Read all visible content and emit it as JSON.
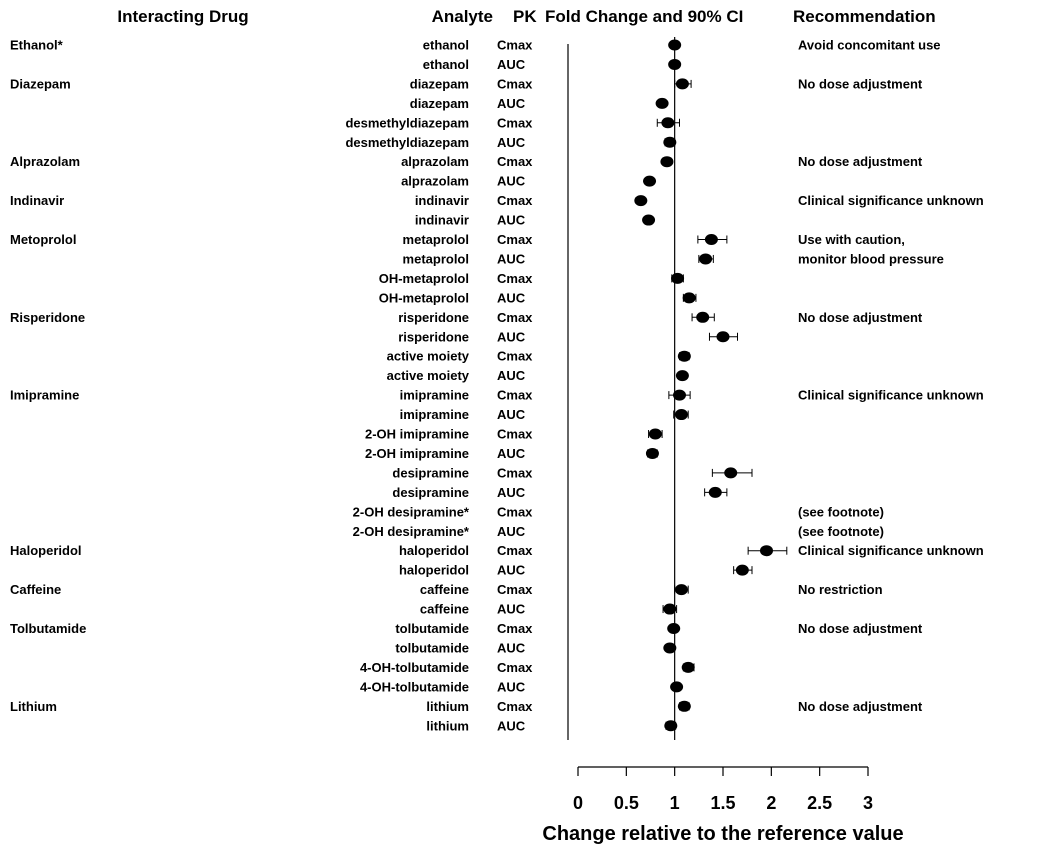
{
  "chart_data": {
    "type": "scatter",
    "subtype": "forest_plot",
    "headers": {
      "drug": "Interacting Drug",
      "analyte": "Analyte",
      "pk": "PK",
      "fold": "Fold Change and 90% CI",
      "recommendation": "Recommendation"
    },
    "xlabel": "Change relative to the reference value",
    "xlim": [
      0,
      3
    ],
    "xticks": [
      "0",
      "0.5",
      "1",
      "1.5",
      "2",
      "2.5",
      "3"
    ],
    "reference_line": 1,
    "rows": [
      {
        "drug": "Ethanol*",
        "analyte": "ethanol",
        "pk": "Cmax",
        "value": 1.0,
        "low": 1.0,
        "high": 1.0,
        "rec": "Avoid concomitant use"
      },
      {
        "drug": "",
        "analyte": "ethanol",
        "pk": "AUC",
        "value": 1.0,
        "low": 1.0,
        "high": 1.0,
        "rec": ""
      },
      {
        "drug": "Diazepam",
        "analyte": "diazepam",
        "pk": "Cmax",
        "value": 1.08,
        "low": 1.0,
        "high": 1.17,
        "rec": "No dose adjustment"
      },
      {
        "drug": "",
        "analyte": "diazepam",
        "pk": "AUC",
        "value": 0.87,
        "low": 0.85,
        "high": 0.89,
        "rec": ""
      },
      {
        "drug": "",
        "analyte": "desmethyldiazepam",
        "pk": "Cmax",
        "value": 0.93,
        "low": 0.82,
        "high": 1.05,
        "rec": ""
      },
      {
        "drug": "",
        "analyte": "desmethyldiazepam",
        "pk": "AUC",
        "value": 0.95,
        "low": 0.9,
        "high": 1.0,
        "rec": ""
      },
      {
        "drug": "Alprazolam",
        "analyte": "alprazolam",
        "pk": "Cmax",
        "value": 0.92,
        "low": 0.88,
        "high": 0.96,
        "rec": "No dose adjustment"
      },
      {
        "drug": "",
        "analyte": "alprazolam",
        "pk": "AUC",
        "value": 0.74,
        "low": 0.72,
        "high": 0.76,
        "rec": ""
      },
      {
        "drug": "Indinavir",
        "analyte": "indinavir",
        "pk": "Cmax",
        "value": 0.65,
        "low": 0.63,
        "high": 0.67,
        "rec": "Clinical significance unknown"
      },
      {
        "drug": "",
        "analyte": "indinavir",
        "pk": "AUC",
        "value": 0.73,
        "low": 0.71,
        "high": 0.75,
        "rec": ""
      },
      {
        "drug": "Metoprolol",
        "analyte": "metaprolol",
        "pk": "Cmax",
        "value": 1.38,
        "low": 1.24,
        "high": 1.54,
        "rec": "Use with caution,"
      },
      {
        "drug": "",
        "analyte": "metaprolol",
        "pk": "AUC",
        "value": 1.32,
        "low": 1.25,
        "high": 1.4,
        "rec": "monitor blood pressure"
      },
      {
        "drug": "",
        "analyte": "OH-metaprolol",
        "pk": "Cmax",
        "value": 1.03,
        "low": 0.97,
        "high": 1.09,
        "rec": ""
      },
      {
        "drug": "",
        "analyte": "OH-metaprolol",
        "pk": "AUC",
        "value": 1.15,
        "low": 1.09,
        "high": 1.22,
        "rec": ""
      },
      {
        "drug": "Risperidone",
        "analyte": "risperidone",
        "pk": "Cmax",
        "value": 1.29,
        "low": 1.18,
        "high": 1.41,
        "rec": "No dose adjustment"
      },
      {
        "drug": "",
        "analyte": "risperidone",
        "pk": "AUC",
        "value": 1.5,
        "low": 1.36,
        "high": 1.65,
        "rec": ""
      },
      {
        "drug": "",
        "analyte": "active moiety",
        "pk": "Cmax",
        "value": 1.1,
        "low": 1.05,
        "high": 1.15,
        "rec": ""
      },
      {
        "drug": "",
        "analyte": "active moiety",
        "pk": "AUC",
        "value": 1.08,
        "low": 1.04,
        "high": 1.12,
        "rec": ""
      },
      {
        "drug": "Imipramine",
        "analyte": "imipramine",
        "pk": "Cmax",
        "value": 1.05,
        "low": 0.94,
        "high": 1.16,
        "rec": "Clinical significance unknown"
      },
      {
        "drug": "",
        "analyte": "imipramine",
        "pk": "AUC",
        "value": 1.07,
        "low": 0.99,
        "high": 1.14,
        "rec": ""
      },
      {
        "drug": "",
        "analyte": "2-OH imipramine",
        "pk": "Cmax",
        "value": 0.8,
        "low": 0.73,
        "high": 0.87,
        "rec": ""
      },
      {
        "drug": "",
        "analyte": "2-OH imipramine",
        "pk": "AUC",
        "value": 0.77,
        "low": 0.72,
        "high": 0.82,
        "rec": ""
      },
      {
        "drug": "",
        "analyte": "desipramine",
        "pk": "Cmax",
        "value": 1.58,
        "low": 1.39,
        "high": 1.8,
        "rec": ""
      },
      {
        "drug": "",
        "analyte": "desipramine",
        "pk": "AUC",
        "value": 1.42,
        "low": 1.31,
        "high": 1.54,
        "rec": ""
      },
      {
        "drug": "",
        "analyte": "2-OH desipramine*",
        "pk": "Cmax",
        "value": null,
        "low": null,
        "high": null,
        "rec": "(see footnote)"
      },
      {
        "drug": "",
        "analyte": "2-OH desipramine*",
        "pk": "AUC",
        "value": null,
        "low": null,
        "high": null,
        "rec": "(see footnote)"
      },
      {
        "drug": "Haloperidol",
        "analyte": "haloperidol",
        "pk": "Cmax",
        "value": 1.95,
        "low": 1.76,
        "high": 2.16,
        "rec": "Clinical significance unknown"
      },
      {
        "drug": "",
        "analyte": "haloperidol",
        "pk": "AUC",
        "value": 1.7,
        "low": 1.61,
        "high": 1.8,
        "rec": ""
      },
      {
        "drug": "Caffeine",
        "analyte": "caffeine",
        "pk": "Cmax",
        "value": 1.07,
        "low": 1.0,
        "high": 1.14,
        "rec": "No restriction"
      },
      {
        "drug": "",
        "analyte": "caffeine",
        "pk": "AUC",
        "value": 0.95,
        "low": 0.88,
        "high": 1.02,
        "rec": ""
      },
      {
        "drug": "Tolbutamide",
        "analyte": "tolbutamide",
        "pk": "Cmax",
        "value": 0.99,
        "low": 0.95,
        "high": 1.03,
        "rec": "No dose adjustment"
      },
      {
        "drug": "",
        "analyte": "tolbutamide",
        "pk": "AUC",
        "value": 0.95,
        "low": 0.92,
        "high": 0.98,
        "rec": ""
      },
      {
        "drug": "",
        "analyte": "4-OH-tolbutamide",
        "pk": "Cmax",
        "value": 1.14,
        "low": 1.09,
        "high": 1.2,
        "rec": ""
      },
      {
        "drug": "",
        "analyte": "4-OH-tolbutamide",
        "pk": "AUC",
        "value": 1.02,
        "low": 1.0,
        "high": 1.04,
        "rec": ""
      },
      {
        "drug": "Lithium",
        "analyte": "lithium",
        "pk": "Cmax",
        "value": 1.1,
        "low": 1.05,
        "high": 1.15,
        "rec": "No dose adjustment"
      },
      {
        "drug": "",
        "analyte": "lithium",
        "pk": "AUC",
        "value": 0.96,
        "low": 0.91,
        "high": 1.01,
        "rec": ""
      }
    ]
  }
}
